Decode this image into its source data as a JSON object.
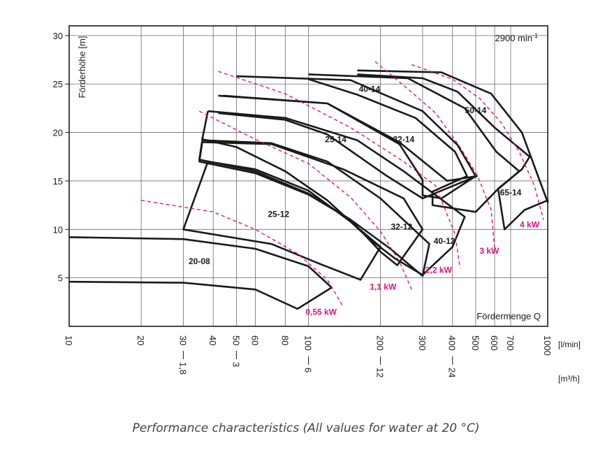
{
  "chart_data": {
    "type": "line",
    "title": "",
    "speed_label": "2900 min",
    "speed_superscript": "-1",
    "ylabel": "Förderhöhe [m]",
    "xlabel": "Fördermenge Q",
    "x_unit_lmin": "[l/min]",
    "x_unit_m3h": "[m³/h]",
    "x_scale": "log",
    "xlim": [
      10,
      1000
    ],
    "ylim": [
      0,
      31
    ],
    "grid": true,
    "y_ticks": [
      5,
      10,
      15,
      20,
      25,
      30
    ],
    "x_ticks_lmin": [
      {
        "value": 10,
        "label": "10",
        "m3h": ""
      },
      {
        "value": 20,
        "label": "20",
        "m3h": ""
      },
      {
        "value": 30,
        "label": "30",
        "m3h": "1,8"
      },
      {
        "value": 40,
        "label": "40",
        "m3h": ""
      },
      {
        "value": 50,
        "label": "50",
        "m3h": "3"
      },
      {
        "value": 60,
        "label": "60",
        "m3h": ""
      },
      {
        "value": 80,
        "label": "80",
        "m3h": ""
      },
      {
        "value": 100,
        "label": "100",
        "m3h": "6"
      },
      {
        "value": 200,
        "label": "200",
        "m3h": "12"
      },
      {
        "value": 300,
        "label": "300",
        "m3h": ""
      },
      {
        "value": 400,
        "label": "400",
        "m3h": "24"
      },
      {
        "value": 500,
        "label": "500",
        "m3h": ""
      },
      {
        "value": 600,
        "label": "600",
        "m3h": ""
      },
      {
        "value": 700,
        "label": "700",
        "m3h": ""
      },
      {
        "value": 1000,
        "label": "1000",
        "m3h": ""
      }
    ],
    "series": [
      {
        "name": "20-08",
        "label_at": [
          35,
          6.4
        ],
        "outline": [
          [
            10,
            9.2
          ],
          [
            30,
            9.0
          ],
          [
            60,
            8.0
          ],
          [
            100,
            6.2
          ],
          [
            125,
            4.0
          ],
          [
            90,
            1.8
          ],
          [
            60,
            3.8
          ],
          [
            30,
            4.5
          ],
          [
            10,
            4.6
          ]
        ]
      },
      {
        "name": "25-12",
        "label_at": [
          75,
          11.3
        ],
        "outline": [
          [
            38,
            17.0
          ],
          [
            60,
            16.2
          ],
          [
            100,
            14.0
          ],
          [
            150,
            10.8
          ],
          [
            200,
            8.2
          ],
          [
            165,
            4.8
          ],
          [
            110,
            6.5
          ],
          [
            70,
            8.5
          ],
          [
            30,
            10.0
          ],
          [
            38,
            17.0
          ]
        ]
      },
      {
        "name": "25-14",
        "label_at": [
          130,
          19.0
        ],
        "outline": [
          [
            36,
            19.2
          ],
          [
            70,
            18.9
          ],
          [
            120,
            17.0
          ],
          [
            200,
            13.2
          ],
          [
            320,
            8.5
          ],
          [
            300,
            5.2
          ],
          [
            220,
            8.0
          ],
          [
            150,
            11.0
          ],
          [
            100,
            13.7
          ],
          [
            60,
            16.0
          ],
          [
            35,
            17.2
          ],
          [
            36,
            19.2
          ]
        ]
      },
      {
        "name": "32-12",
        "label_at": [
          245,
          10.0
        ],
        "outline": [
          [
            36,
            19.0
          ],
          [
            70,
            18.8
          ],
          [
            140,
            16.2
          ],
          [
            250,
            13.2
          ],
          [
            300,
            10.0
          ],
          [
            235,
            6.3
          ],
          [
            200,
            7.7
          ],
          [
            150,
            11.0
          ],
          [
            100,
            13.6
          ],
          [
            60,
            15.8
          ],
          [
            35,
            17.0
          ],
          [
            36,
            19.0
          ]
        ]
      },
      {
        "name": "32-14",
        "label_at": [
          250,
          19.0
        ],
        "outline": [
          [
            38,
            22.2
          ],
          [
            80,
            21.5
          ],
          [
            160,
            19.2
          ],
          [
            250,
            16.0
          ],
          [
            450,
            11.3
          ],
          [
            400,
            8.2
          ],
          [
            300,
            5.3
          ],
          [
            230,
            7.0
          ],
          [
            180,
            9.0
          ],
          [
            120,
            13.0
          ],
          [
            80,
            16.0
          ],
          [
            50,
            18.5
          ],
          [
            36,
            19.3
          ],
          [
            38,
            22.2
          ]
        ]
      },
      {
        "name": "40-12",
        "label_at": [
          370,
          8.5
        ],
        "outline": [
          [
            42,
            23.8
          ],
          [
            120,
            23.0
          ],
          [
            240,
            19.0
          ],
          [
            380,
            15.0
          ],
          [
            505,
            15.5
          ],
          [
            300,
            13.2
          ],
          [
            210,
            15.6
          ],
          [
            120,
            19.8
          ],
          [
            80,
            21.3
          ],
          [
            42,
            22.0
          ]
        ]
      },
      {
        "name": "40-14",
        "label_at": [
          180,
          24.2
        ],
        "outline": [
          [
            50,
            25.8
          ],
          [
            150,
            25.4
          ],
          [
            300,
            22.2
          ],
          [
            420,
            18.7
          ],
          [
            500,
            15.5
          ],
          [
            360,
            13.2
          ],
          [
            300,
            13.5
          ],
          [
            300,
            15.1
          ],
          [
            240,
            18.8
          ],
          [
            120,
            23.0
          ],
          [
            44,
            23.8
          ]
        ]
      },
      {
        "name": "50-14",
        "label_at": [
          500,
          22.0
        ],
        "outline": [
          [
            100,
            26.0
          ],
          [
            260,
            25.6
          ],
          [
            450,
            22.5
          ],
          [
            610,
            18.0
          ],
          [
            760,
            16.0
          ],
          [
            610,
            14.0
          ],
          [
            500,
            11.8
          ],
          [
            330,
            12.5
          ],
          [
            330,
            13.9
          ],
          [
            460,
            15.5
          ],
          [
            410,
            18.0
          ],
          [
            280,
            21.5
          ],
          [
            160,
            23.9
          ],
          [
            100,
            25.5
          ]
        ]
      },
      {
        "name": "65-14",
        "label_at": [
          700,
          13.5
        ],
        "outline": [
          [
            160,
            26.4
          ],
          [
            360,
            26.2
          ],
          [
            580,
            24.0
          ],
          [
            780,
            20.0
          ],
          [
            1000,
            12.8
          ],
          [
            1000,
            13.0
          ],
          [
            800,
            12.0
          ],
          [
            660,
            10.0
          ],
          [
            620,
            14.2
          ],
          [
            780,
            16.2
          ],
          [
            840,
            17.5
          ],
          [
            600,
            20.5
          ],
          [
            420,
            24.2
          ],
          [
            300,
            25.6
          ],
          [
            160,
            26.0
          ]
        ]
      }
    ],
    "power_lines": [
      {
        "name": "0,55 kW",
        "label_at": [
          113,
          1.2
        ],
        "points": [
          [
            20,
            13.0
          ],
          [
            40,
            11.8
          ],
          [
            60,
            10.0
          ],
          [
            90,
            7.5
          ],
          [
            120,
            4.8
          ],
          [
            140,
            2.0
          ]
        ]
      },
      {
        "name": "1,1 kW",
        "label_at": [
          205,
          3.8
        ],
        "points": [
          [
            35,
            22.2
          ],
          [
            60,
            19.3
          ],
          [
            100,
            16.8
          ],
          [
            150,
            13.3
          ],
          [
            200,
            9.8
          ],
          [
            240,
            6.7
          ],
          [
            270,
            3.8
          ]
        ]
      },
      {
        "name": "2,2 kW",
        "label_at": [
          350,
          5.5
        ],
        "points": [
          [
            42,
            26.3
          ],
          [
            80,
            24.0
          ],
          [
            150,
            20.5
          ],
          [
            250,
            17.0
          ],
          [
            340,
            14.5
          ],
          [
            410,
            9.5
          ],
          [
            430,
            6.0
          ]
        ]
      },
      {
        "name": "3 kW",
        "label_at": [
          570,
          7.5
        ],
        "points": [
          [
            190,
            27.3
          ],
          [
            260,
            24.5
          ],
          [
            340,
            22.0
          ],
          [
            430,
            18.5
          ],
          [
            510,
            15.5
          ],
          [
            580,
            12.0
          ],
          [
            600,
            8.0
          ]
        ]
      },
      {
        "name": "4 kW",
        "label_at": [
          840,
          10.2
        ],
        "points": [
          [
            270,
            27.0
          ],
          [
            400,
            25.5
          ],
          [
            520,
            23.5
          ],
          [
            640,
            21.0
          ],
          [
            760,
            18.0
          ],
          [
            880,
            14.5
          ],
          [
            960,
            11.0
          ]
        ]
      }
    ],
    "color_curve": "#1a1a1a",
    "color_power": "#e0147f"
  },
  "caption": "Performance characteristics (All values for water at 20 °C)"
}
